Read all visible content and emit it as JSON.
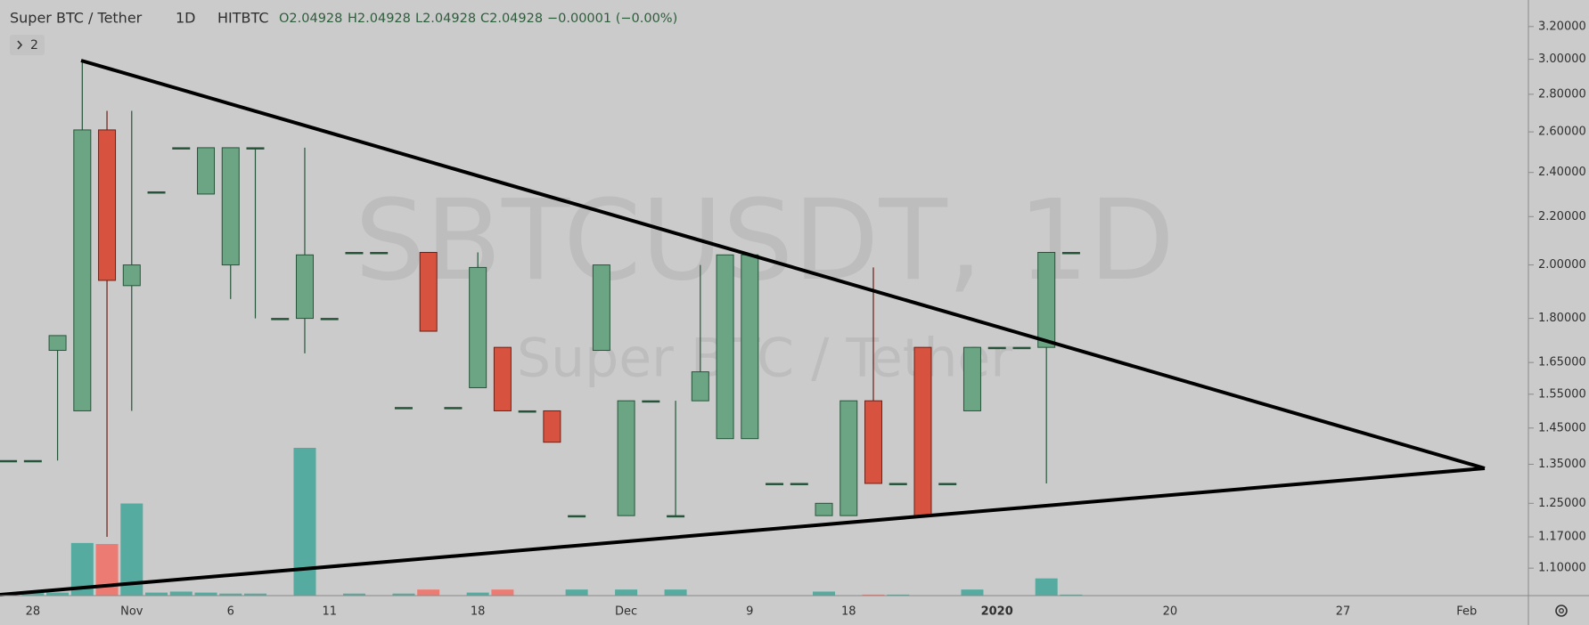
{
  "chart_data": {
    "type": "candlestick",
    "title": "Super BTC / Tether",
    "interval": "1D",
    "exchange": "HITBTC",
    "legend_values": [
      "O2.04928",
      "H2.04928",
      "L2.04928",
      "C2.04928",
      "−0.00001 (−0.00%)"
    ],
    "hidden_indicators": 2,
    "watermark": "SBTCUSDT, 1D",
    "categories": [
      null,
      "28",
      null,
      null,
      null,
      "Nov",
      null,
      null,
      null,
      "6",
      null,
      null,
      null,
      "11",
      null,
      null,
      null,
      null,
      null,
      "18",
      null,
      null,
      null,
      null,
      null,
      "Dec",
      null,
      null,
      null,
      null,
      "9",
      null,
      null,
      null,
      "18",
      null,
      null,
      null,
      null,
      null,
      "2020",
      null,
      null,
      null,
      null,
      null,
      null,
      "20",
      null,
      null,
      null,
      null,
      null,
      null,
      "27",
      null,
      null,
      null,
      null,
      "Feb"
    ],
    "open": [
      1.36,
      1.36,
      1.69,
      1.5,
      2.61,
      1.92,
      2.31,
      2.52,
      2.3,
      2.0,
      2.52,
      1.8,
      1.8,
      1.8,
      2.05,
      2.05,
      1.51,
      2.05,
      1.51,
      1.57,
      1.7,
      1.5,
      1.5,
      1.22,
      1.69,
      1.22,
      1.53,
      1.22,
      1.53,
      1.42,
      1.42,
      1.3,
      1.3,
      1.22,
      1.22,
      1.53,
      1.3,
      1.7,
      1.3,
      1.5,
      1.7,
      1.7,
      1.7,
      2.05,
      null,
      null,
      null,
      null,
      null,
      null,
      null,
      null,
      null,
      null,
      null,
      null,
      null,
      null,
      null,
      null
    ],
    "high": [
      1.36,
      1.36,
      1.74,
      3.0,
      2.71,
      2.71,
      2.31,
      2.52,
      2.52,
      2.52,
      2.52,
      1.8,
      2.52,
      1.8,
      2.05,
      2.05,
      1.51,
      2.05,
      1.51,
      2.05,
      1.7,
      1.5,
      1.5,
      1.22,
      2.0,
      1.53,
      1.53,
      1.53,
      2.0,
      2.04,
      2.04,
      1.3,
      1.3,
      1.25,
      1.53,
      1.99,
      1.3,
      1.7,
      1.3,
      1.7,
      1.7,
      1.7,
      2.05,
      2.05,
      null,
      null,
      null,
      null,
      null,
      null,
      null,
      null,
      null,
      null,
      null,
      null,
      null,
      null,
      null,
      null
    ],
    "low": [
      1.36,
      1.36,
      1.36,
      1.5,
      1.17,
      1.5,
      2.31,
      2.52,
      2.3,
      1.87,
      1.8,
      1.8,
      1.68,
      1.8,
      2.05,
      2.05,
      1.51,
      1.755,
      1.51,
      1.57,
      1.5,
      1.5,
      1.41,
      1.22,
      1.69,
      1.22,
      1.53,
      1.22,
      1.53,
      1.42,
      1.42,
      1.3,
      1.3,
      1.22,
      1.22,
      1.3,
      1.3,
      1.22,
      1.3,
      1.5,
      1.7,
      1.7,
      1.3,
      2.05,
      null,
      null,
      null,
      null,
      null,
      null,
      null,
      null,
      null,
      null,
      null,
      null,
      null,
      null,
      null,
      null
    ],
    "close": [
      1.36,
      1.36,
      1.74,
      2.61,
      1.94,
      2.0,
      2.31,
      2.52,
      2.52,
      2.52,
      2.52,
      1.8,
      2.04,
      1.8,
      2.05,
      2.05,
      1.51,
      1.755,
      1.51,
      1.99,
      1.5,
      1.5,
      1.41,
      1.22,
      2.0,
      1.53,
      1.53,
      1.22,
      1.62,
      2.04,
      2.04,
      1.3,
      1.3,
      1.25,
      1.53,
      1.3,
      1.3,
      1.22,
      1.3,
      1.7,
      1.7,
      1.7,
      2.05,
      2.05,
      null,
      null,
      null,
      null,
      null,
      null,
      null,
      null,
      null,
      null,
      null,
      null,
      null,
      null,
      null,
      null
    ],
    "volume": [
      0,
      3,
      3,
      52,
      51,
      91,
      3,
      4,
      3,
      2,
      2,
      0,
      146,
      0,
      2,
      0,
      2,
      6,
      0,
      3,
      6,
      0,
      0,
      6,
      0,
      6,
      0,
      6,
      0,
      0,
      0,
      0,
      0,
      4,
      0,
      1,
      1,
      0,
      0,
      6,
      0,
      0,
      17,
      1,
      null,
      null,
      null,
      null,
      null,
      null,
      null,
      null,
      null,
      null,
      null,
      null,
      null,
      null,
      null,
      null
    ],
    "up_color": "#6ba584",
    "down_color": "#d8533f",
    "volume_up_color": "#55ab9f",
    "volume_down_color": "#ec7c73",
    "log_scale": true,
    "ylim": [
      1.042,
      3.372
    ],
    "yticks": [
      {
        "value": 3.2,
        "label": "3.20000"
      },
      {
        "value": 3.0,
        "label": "3.00000"
      },
      {
        "value": 2.8,
        "label": "2.80000"
      },
      {
        "value": 2.6,
        "label": "2.60000"
      },
      {
        "value": 2.4,
        "label": "2.40000"
      },
      {
        "value": 2.2,
        "label": "2.20000"
      },
      {
        "value": 2.0,
        "label": "2.00000"
      },
      {
        "value": 1.8,
        "label": "1.80000"
      },
      {
        "value": 1.65,
        "label": "1.65000"
      },
      {
        "value": 1.55,
        "label": "1.55000"
      },
      {
        "value": 1.45,
        "label": "1.45000"
      },
      {
        "value": 1.35,
        "label": "1.35000"
      },
      {
        "value": 1.25,
        "label": "1.25000"
      },
      {
        "value": 1.17,
        "label": "1.17000"
      },
      {
        "value": 1.1,
        "label": "1.10000"
      }
    ]
  }
}
